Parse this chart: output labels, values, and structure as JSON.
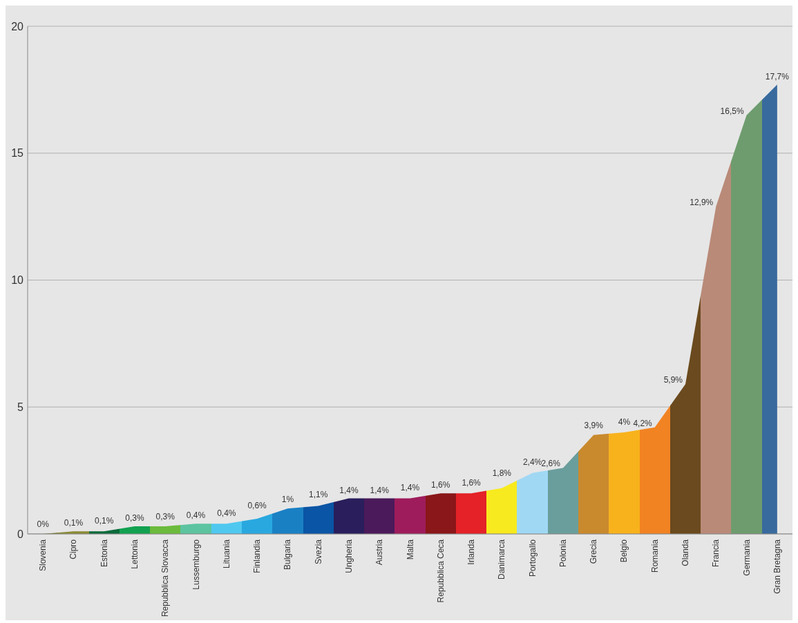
{
  "chart_data": {
    "type": "area",
    "categories": [
      "Slovenia",
      "Cipro",
      "Estonia",
      "Lettonia",
      "Repubblica Slovacca",
      "Lussemburgo",
      "Lituania",
      "Finlandia",
      "Bulgaria",
      "Svezia",
      "Ungheria",
      "Austria",
      "Malta",
      "Repubblica Ceca",
      "Irlanda",
      "Danimarca",
      "Portogallo",
      "Polonia",
      "Grecia",
      "Belgio",
      "Romania",
      "Olanda",
      "Francia",
      "Germania",
      "Gran Bretagna"
    ],
    "values": [
      0,
      0.1,
      0.1,
      0.3,
      0.3,
      0.4,
      0.4,
      0.6,
      1,
      1.1,
      1.4,
      1.4,
      1.4,
      1.6,
      1.6,
      1.8,
      2.4,
      2.6,
      3.9,
      4,
      4.2,
      5.9,
      12.9,
      16.5,
      17.7
    ],
    "value_labels": [
      "0%",
      "0,1%",
      "0,1%",
      "0,3%",
      "0,3%",
      "0,4%",
      "0,4%",
      "0,6%",
      "1%",
      "1,1%",
      "1,4%",
      "1,4%",
      "1,4%",
      "1,6%",
      "1,6%",
      "1,8%",
      "2,4%",
      "2,6%",
      "3,9%",
      "4%",
      "4,2%",
      "5,9%",
      "12,9%",
      "16,5%",
      "17,7%"
    ],
    "colors": [
      "#7a7a2a",
      "#8b8b34",
      "#0b6a3a",
      "#12a150",
      "#6cbb3c",
      "#5cc4a0",
      "#4fc8f0",
      "#29a8e0",
      "#1a80c4",
      "#0a55a5",
      "#2a1e5c",
      "#4a1a5a",
      "#9e1c5c",
      "#8a171a",
      "#e42228",
      "#f7ea1e",
      "#a0d8f4",
      "#6a9e9c",
      "#c98a2e",
      "#f8b21c",
      "#f28322",
      "#6a4a1e",
      "#b98a78",
      "#6e9c6e",
      "#386a9e"
    ],
    "ylim": [
      0,
      20
    ],
    "yticks": [
      0,
      5,
      10,
      15,
      20
    ],
    "grid": "y"
  }
}
